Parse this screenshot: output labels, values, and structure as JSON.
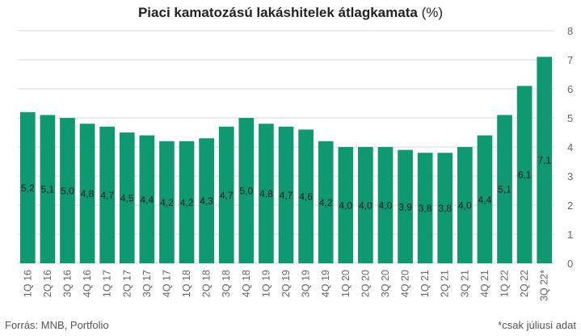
{
  "chart_data": {
    "type": "bar",
    "title": "Piaci kamatozású lakáshitelek átlagkamata",
    "title_unit": "(%)",
    "categories": [
      "1Q 16",
      "2Q 16",
      "3Q 16",
      "4Q 16",
      "1Q 17",
      "2Q 17",
      "3Q 17",
      "4Q 17",
      "1Q 18",
      "2Q 18",
      "3Q 18",
      "4Q 18",
      "1Q 19",
      "2Q 19",
      "3Q 19",
      "4Q 19",
      "1Q 20",
      "2Q 20",
      "3Q 20",
      "4Q 20",
      "1Q 21",
      "2Q 21",
      "3Q 21",
      "4Q 21",
      "1Q 22",
      "2Q 22",
      "3Q 22*"
    ],
    "values": [
      5.2,
      5.1,
      5.0,
      4.8,
      4.7,
      4.5,
      4.4,
      4.2,
      4.2,
      4.3,
      4.7,
      5.0,
      4.8,
      4.7,
      4.6,
      4.2,
      4.0,
      4.0,
      4.0,
      3.9,
      3.8,
      3.8,
      4.0,
      4.4,
      5.1,
      6.1,
      7.1
    ],
    "data_labels": [
      "5,2",
      "5,1",
      "5,0",
      "4,8",
      "4,7",
      "4,5",
      "4,4",
      "4,2",
      "4,2",
      "4,3",
      "4,7",
      "5,0",
      "4,8",
      "4,7",
      "4,6",
      "4,2",
      "4,0",
      "4,0",
      "4,0",
      "3,9",
      "3,8",
      "3,8",
      "4,0",
      "4,4",
      "5,1",
      "6,1",
      "7,1"
    ],
    "y_ticks": [
      "0",
      "1",
      "2",
      "3",
      "4",
      "5",
      "6",
      "7",
      "8"
    ],
    "ylim": [
      0,
      8
    ],
    "y_axis_side": "right",
    "grid": true,
    "bar_color": "#0f9970",
    "grid_color": "#d9d9d9",
    "label_color": "#1a1a1a",
    "tick_color": "#666666"
  },
  "footer": {
    "source": "Forrás: MNB, Portfolio",
    "note": "*csak júliusi adat"
  }
}
